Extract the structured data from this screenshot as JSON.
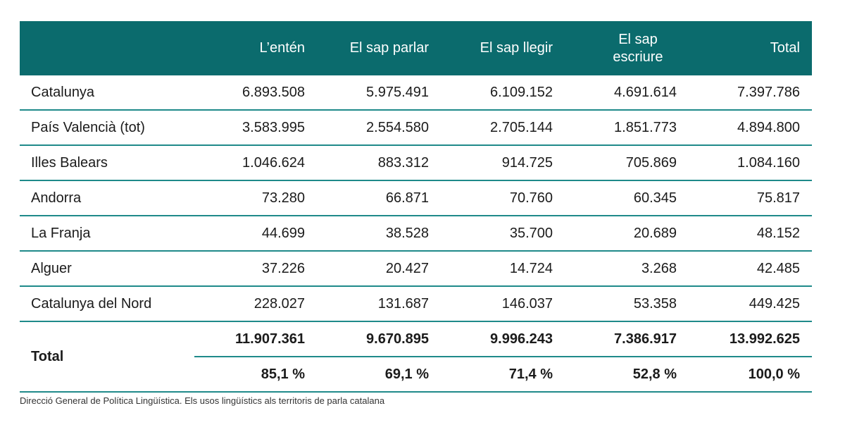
{
  "header": {
    "corner": "",
    "cols": [
      "L’entén",
      "El sap parlar",
      "El sap llegir",
      "El sap escriure",
      "Total"
    ]
  },
  "rows": [
    {
      "name": "Catalunya",
      "values": [
        "6.893.508",
        "5.975.491",
        "6.109.152",
        "4.691.614",
        "7.397.786"
      ]
    },
    {
      "name": "País Valencià (tot)",
      "values": [
        "3.583.995",
        "2.554.580",
        "2.705.144",
        "1.851.773",
        "4.894.800"
      ]
    },
    {
      "name": "Illes Balears",
      "values": [
        "1.046.624",
        "883.312",
        "914.725",
        "705.869",
        "1.084.160"
      ]
    },
    {
      "name": "Andorra",
      "values": [
        "73.280",
        "66.871",
        "70.760",
        "60.345",
        "75.817"
      ]
    },
    {
      "name": "La Franja",
      "values": [
        "44.699",
        "38.528",
        "35.700",
        "20.689",
        "48.152"
      ]
    },
    {
      "name": "Alguer",
      "values": [
        "37.226",
        "20.427",
        "14.724",
        "3.268",
        "42.485"
      ]
    },
    {
      "name": "Catalunya del Nord",
      "values": [
        "228.027",
        "131.687",
        "146.037",
        "53.358",
        "449.425"
      ]
    }
  ],
  "total": {
    "label": "Total",
    "absolute": [
      "11.907.361",
      "9.670.895",
      "9.996.243",
      "7.386.917",
      "13.992.625"
    ],
    "percent": [
      "85,1 %",
      "69,1 %",
      "71,4 %",
      "52,8 %",
      "100,0 %"
    ]
  },
  "source": "Direcció General de Política Lingüística. Els usos lingüístics als territoris de parla catalana",
  "colors": {
    "header_bg": "#0b6b6d",
    "rule": "#1f8a8a"
  }
}
